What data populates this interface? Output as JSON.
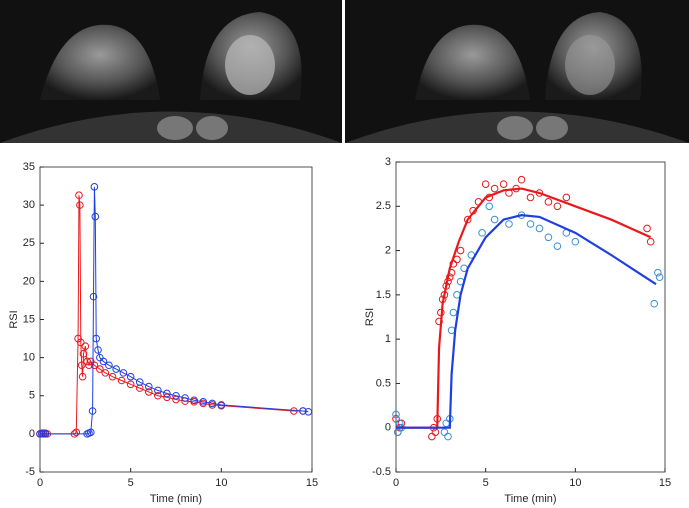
{
  "chart_data": [
    {
      "type": "scatter",
      "xlabel": "Time (min)",
      "ylabel": "RSI",
      "xlim": [
        0,
        15
      ],
      "ylim": [
        -5,
        35
      ],
      "xticks": [
        0,
        5,
        10,
        15
      ],
      "yticks": [
        -5,
        0,
        5,
        10,
        15,
        20,
        25,
        30,
        35
      ],
      "series": [
        {
          "color": "#e8191d",
          "mode": "line-markers",
          "x": [
            0,
            0.1,
            0.2,
            0.3,
            0.4,
            1.9,
            2.0,
            2.1,
            2.15,
            2.2,
            2.25,
            2.3,
            2.35,
            2.4,
            2.5,
            2.6,
            2.7,
            2.8,
            3.0,
            3.3,
            3.6,
            4.0,
            4.5,
            5.0,
            5.5,
            6.0,
            6.5,
            7.0,
            7.5,
            8.0,
            8.5,
            9.0,
            9.5,
            10.0,
            14.0,
            14.5
          ],
          "y": [
            0,
            0.1,
            0,
            0.1,
            0,
            0,
            0.2,
            12.5,
            31.3,
            30,
            12,
            9,
            7.5,
            10.5,
            11.5,
            9.5,
            9,
            9.5,
            9,
            8.5,
            8,
            7.5,
            7,
            6.5,
            6,
            5.5,
            5,
            4.8,
            4.5,
            4.3,
            4.2,
            4,
            3.8,
            3.7,
            3,
            3
          ]
        },
        {
          "color": "#1f3fe0",
          "mode": "line-markers",
          "x": [
            0,
            0.1,
            0.2,
            0.3,
            2.6,
            2.7,
            2.8,
            2.9,
            2.95,
            3.0,
            3.05,
            3.1,
            3.2,
            3.3,
            3.5,
            3.8,
            4.2,
            4.6,
            5.0,
            5.5,
            6.0,
            6.5,
            7.0,
            7.5,
            8.0,
            8.5,
            9.0,
            9.5,
            10.0,
            14.5,
            14.8
          ],
          "y": [
            0,
            0,
            0.1,
            0,
            0,
            0.1,
            0.2,
            3,
            18,
            32.4,
            28.5,
            12.5,
            11,
            10,
            9.5,
            9,
            8.5,
            8,
            7.5,
            6.8,
            6.2,
            5.7,
            5.3,
            5,
            4.7,
            4.4,
            4.2,
            4,
            3.8,
            3,
            2.9
          ]
        }
      ]
    },
    {
      "type": "scatter",
      "xlabel": "Time (min)",
      "ylabel": "RSI",
      "xlim": [
        0,
        15
      ],
      "ylim": [
        -0.5,
        3
      ],
      "xticks": [
        0,
        5,
        10,
        15
      ],
      "yticks": [
        -0.5,
        0,
        0.5,
        1,
        1.5,
        2,
        2.5,
        3
      ],
      "series": [
        {
          "color": "#e8191d",
          "mode": "markers",
          "x": [
            0,
            0.1,
            0.2,
            0.3,
            2.0,
            2.1,
            2.2,
            2.3,
            2.4,
            2.5,
            2.6,
            2.7,
            2.8,
            2.9,
            3.0,
            3.1,
            3.2,
            3.4,
            3.6,
            4.0,
            4.3,
            4.6,
            5.0,
            5.2,
            5.5,
            6.0,
            6.3,
            6.7,
            7.0,
            7.5,
            8.0,
            8.5,
            9.0,
            9.5,
            14.0,
            14.2
          ],
          "y": [
            0.1,
            -0.05,
            0,
            0.05,
            -0.1,
            0,
            -0.05,
            0.1,
            1.2,
            1.3,
            1.45,
            1.5,
            1.6,
            1.65,
            1.7,
            1.75,
            1.85,
            1.9,
            2.0,
            2.35,
            2.45,
            2.55,
            2.75,
            2.6,
            2.7,
            2.75,
            2.65,
            2.7,
            2.8,
            2.6,
            2.65,
            2.55,
            2.5,
            2.6,
            2.25,
            2.1
          ]
        },
        {
          "color": "#e8191d",
          "mode": "line",
          "x": [
            0,
            2.3,
            2.4,
            2.6,
            3.0,
            3.5,
            4.0,
            5.0,
            6.0,
            7.0,
            8.0,
            10.0,
            12.0,
            14.2
          ],
          "y": [
            0,
            0,
            0.9,
            1.4,
            1.8,
            2.1,
            2.35,
            2.6,
            2.68,
            2.7,
            2.65,
            2.5,
            2.35,
            2.15
          ]
        },
        {
          "color": "#3a8fd8",
          "mode": "markers",
          "x": [
            0,
            0.1,
            0.2,
            0.3,
            2.7,
            2.8,
            2.9,
            3.0,
            3.1,
            3.2,
            3.4,
            3.6,
            3.8,
            4.2,
            4.8,
            5.2,
            5.5,
            6.3,
            7.0,
            7.5,
            8.0,
            8.5,
            9.0,
            9.5,
            10.0,
            14.4,
            14.6,
            14.7
          ],
          "y": [
            0.15,
            -0.05,
            0.05,
            0,
            -0.05,
            0.05,
            -0.1,
            0.1,
            1.1,
            1.3,
            1.5,
            1.65,
            1.8,
            1.95,
            2.2,
            2.5,
            2.35,
            2.3,
            2.4,
            2.3,
            2.25,
            2.15,
            2.05,
            2.2,
            2.1,
            1.4,
            1.75,
            1.7
          ]
        },
        {
          "color": "#1f3fe0",
          "mode": "line",
          "x": [
            0,
            3.0,
            3.1,
            3.3,
            3.6,
            4.0,
            5.0,
            6.0,
            7.0,
            8.0,
            10.0,
            12.0,
            14.5
          ],
          "y": [
            0,
            0,
            0.6,
            1.1,
            1.5,
            1.8,
            2.15,
            2.35,
            2.4,
            2.38,
            2.2,
            1.95,
            1.62
          ]
        }
      ]
    }
  ]
}
